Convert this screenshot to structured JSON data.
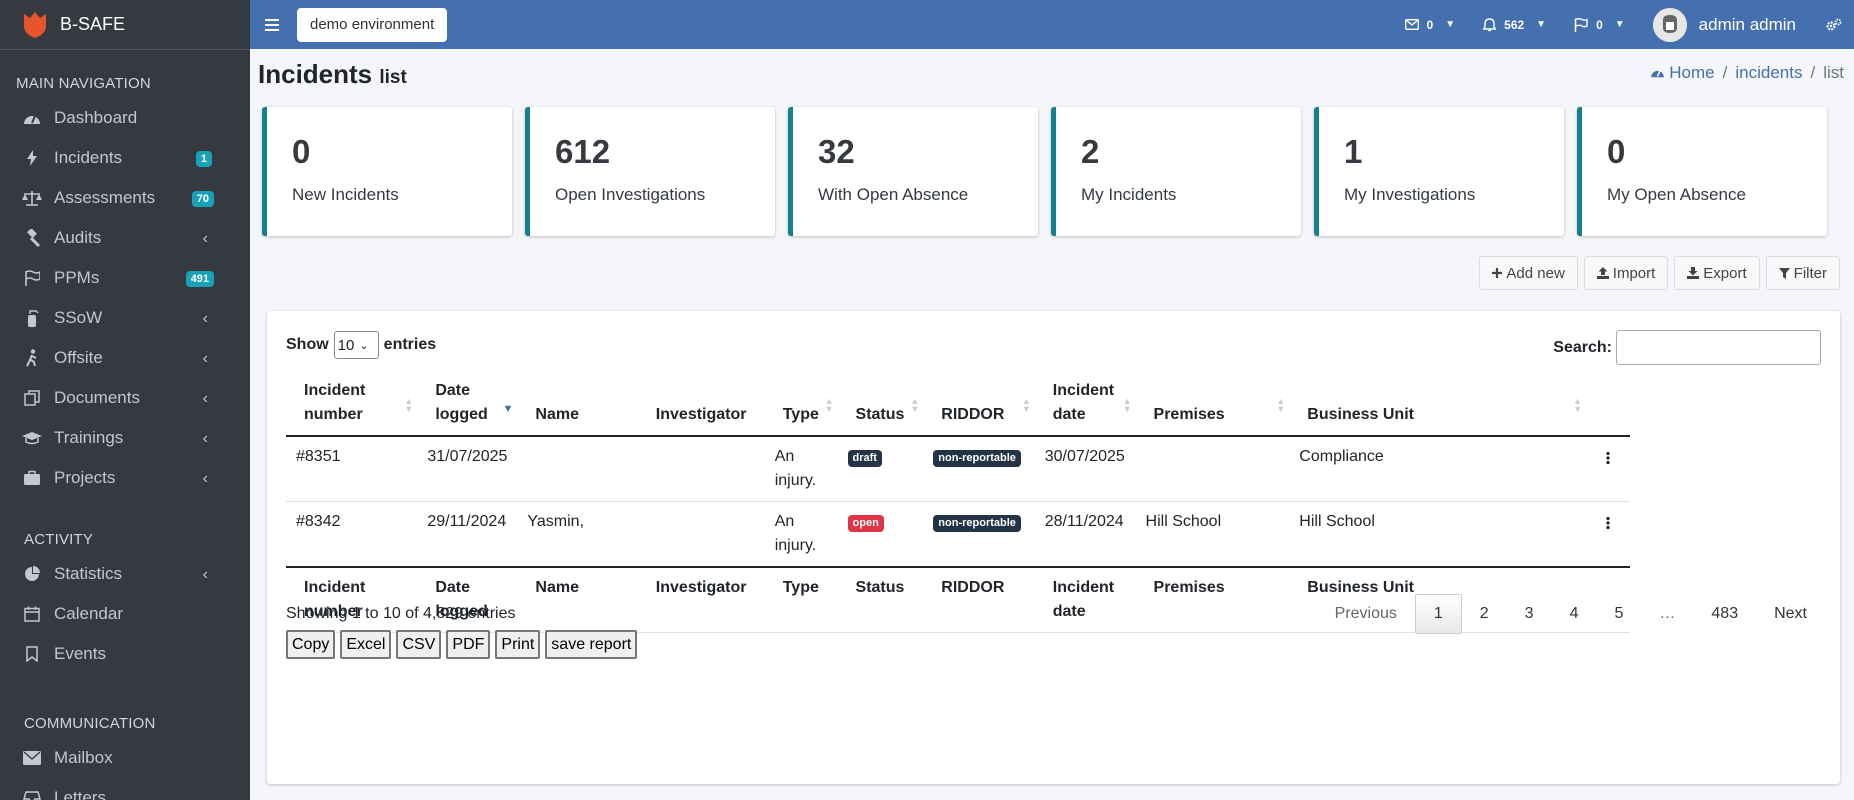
{
  "brand": {
    "name": "B-SAFE"
  },
  "sidebar": {
    "main_header": "MAIN NAVIGATION",
    "main_items": [
      {
        "label": "Dashboard",
        "icon": "tachometer-icon"
      },
      {
        "label": "Incidents",
        "icon": "bolt-icon",
        "badge": "1"
      },
      {
        "label": "Assessments",
        "icon": "scale-icon",
        "badge": "70"
      },
      {
        "label": "Audits",
        "icon": "gavel-icon"
      },
      {
        "label": "PPMs",
        "icon": "flag-icon",
        "badge": "491"
      },
      {
        "label": "SSoW",
        "icon": "fire-extinguisher-icon"
      },
      {
        "label": "Offsite",
        "icon": "hiker-icon"
      },
      {
        "label": "Documents",
        "icon": "copy-icon"
      },
      {
        "label": "Trainings",
        "icon": "graduation-cap-icon"
      },
      {
        "label": "Projects",
        "icon": "briefcase-icon"
      }
    ],
    "activity_header": "ACTIVITY",
    "activity_items": [
      {
        "label": "Statistics",
        "icon": "pie-chart-icon"
      },
      {
        "label": "Calendar",
        "icon": "calendar-icon"
      },
      {
        "label": "Events",
        "icon": "bookmark-icon"
      }
    ],
    "comm_header": "COMMUNICATION",
    "comm_items": [
      {
        "label": "Mailbox",
        "icon": "envelope-icon"
      },
      {
        "label": "Letters",
        "icon": "inbox-icon"
      }
    ]
  },
  "topbar": {
    "environment": "demo environment",
    "messages_count": "0",
    "notifications_count": "562",
    "flags_count": "0",
    "user_name": "admin admin"
  },
  "page": {
    "title": "Incidents",
    "subtitle": "list",
    "breadcrumb": {
      "home": "Home",
      "section": "incidents",
      "current": "list"
    }
  },
  "cards": [
    {
      "value": "0",
      "label": "New Incidents"
    },
    {
      "value": "612",
      "label": "Open Investigations"
    },
    {
      "value": "32",
      "label": "With Open Absence"
    },
    {
      "value": "2",
      "label": "My Incidents"
    },
    {
      "value": "1",
      "label": "My Investigations"
    },
    {
      "value": "0",
      "label": "My Open Absence"
    }
  ],
  "actions": {
    "add": "Add new",
    "import": "Import",
    "export": "Export",
    "filter": "Filter"
  },
  "table": {
    "show_label": "Show",
    "entries_value": "10",
    "entries_label": "entries",
    "search_label": "Search:",
    "columns": {
      "incident_number": [
        "Incident",
        "number"
      ],
      "date_logged": [
        "Date",
        "logged"
      ],
      "name": "Name",
      "investigator": "Investigator",
      "type": "Type",
      "status": "Status",
      "riddor": "RIDDOR",
      "incident_date": [
        "Incident",
        "date"
      ],
      "premises": "Premises",
      "business_unit": "Business Unit"
    },
    "rows": [
      {
        "number": "#8351",
        "date_logged": "31/07/2025",
        "name": "",
        "investigator": "",
        "type": [
          "An",
          "injury."
        ],
        "status": "draft",
        "riddor": "non-reportable",
        "incident_date": "30/07/2025",
        "premises": "",
        "business_unit": "Compliance"
      },
      {
        "number": "#8342",
        "date_logged": "29/11/2024",
        "name": "Yasmin,",
        "investigator": "",
        "type": [
          "An",
          "injury."
        ],
        "status": "open",
        "riddor": "non-reportable",
        "incident_date": "28/11/2024",
        "premises": "Hill School",
        "business_unit": "Hill School"
      }
    ],
    "info": "Showing 1 to 10 of 4,829 entries",
    "pager": {
      "previous": "Previous",
      "pages": [
        "1",
        "2",
        "3",
        "4",
        "5",
        "…",
        "483"
      ],
      "next": "Next"
    },
    "export_buttons": [
      "Copy",
      "Excel",
      "CSV",
      "PDF",
      "Print",
      "save report"
    ]
  }
}
